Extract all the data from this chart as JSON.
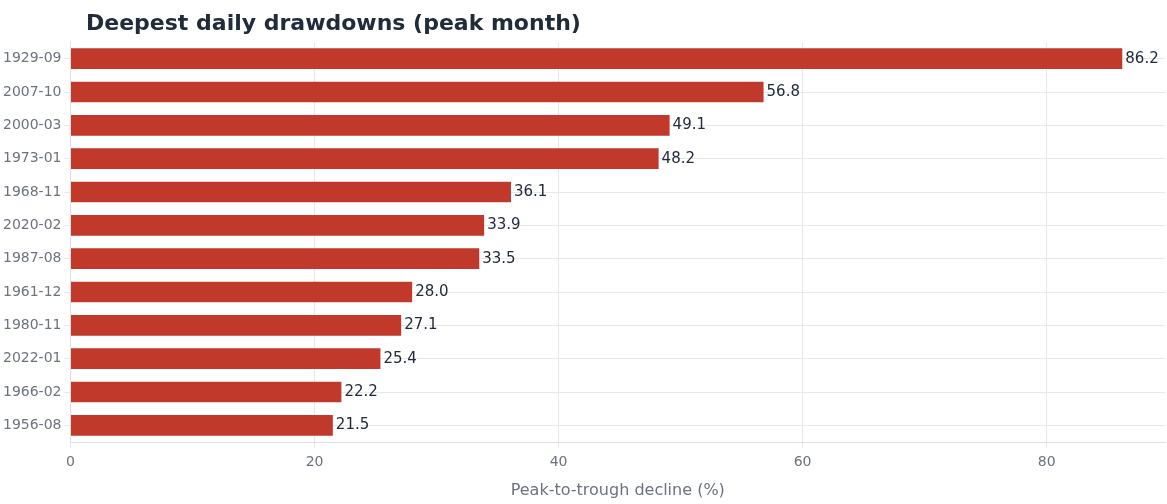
{
  "chart_data": {
    "type": "bar",
    "orientation": "horizontal",
    "title": "Deepest daily drawdowns (peak month)",
    "xlabel": "Peak-to-trough decline (%)",
    "categories": [
      "1929-09",
      "2007-10",
      "2000-03",
      "1973-01",
      "1968-11",
      "2020-02",
      "1987-08",
      "1961-12",
      "1980-11",
      "2022-01",
      "1966-02",
      "1956-08"
    ],
    "values": [
      86.2,
      56.8,
      49.1,
      48.2,
      36.1,
      33.9,
      33.5,
      28.0,
      27.1,
      25.4,
      22.2,
      21.5
    ],
    "value_labels": [
      "86.2",
      "56.8",
      "49.1",
      "48.2",
      "36.1",
      "33.9",
      "33.5",
      "28.0",
      "27.1",
      "25.4",
      "22.2",
      "21.5"
    ],
    "color": "#c0392b",
    "xlim": [
      0,
      89.7
    ],
    "xticks": [
      0,
      20,
      40,
      60,
      80
    ],
    "grid": true,
    "legend": false
  }
}
